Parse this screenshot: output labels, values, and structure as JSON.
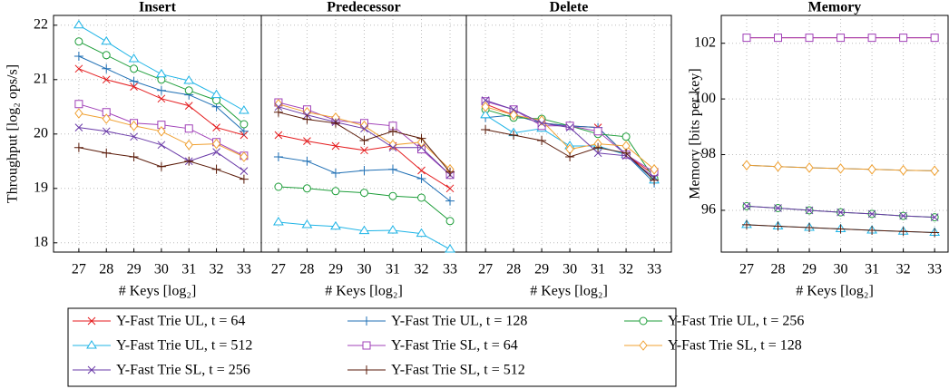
{
  "chart_data": [
    {
      "type": "line",
      "title": "Insert",
      "ylabel": "Throughput [log₂ ops/s]",
      "xlabel": "# Keys [log₂]",
      "x": [
        27,
        28,
        29,
        30,
        31,
        32,
        33
      ],
      "xlim": [
        26.08,
        33.63
      ],
      "xticks": [
        27,
        28,
        29,
        30,
        31,
        32,
        33
      ],
      "ylim": [
        17.83,
        22.18
      ],
      "yticks": [
        18,
        19,
        20,
        21,
        22
      ],
      "grid": true,
      "series": [
        {
          "name": "Y-Fast Trie UL, t = 64",
          "color": "#e41a1c",
          "marker": "x",
          "values": [
            21.2,
            21.0,
            20.87,
            20.65,
            20.52,
            20.12,
            19.98
          ]
        },
        {
          "name": "Y-Fast Trie UL, t = 128",
          "color": "#1f6fb4",
          "marker": "+",
          "values": [
            21.43,
            21.2,
            20.97,
            20.8,
            20.72,
            20.5,
            20.05
          ]
        },
        {
          "name": "Y-Fast Trie UL, t = 256",
          "color": "#1e9e3a",
          "marker": "o",
          "values": [
            21.7,
            21.45,
            21.2,
            21.0,
            20.8,
            20.62,
            20.18
          ]
        },
        {
          "name": "Y-Fast Trie UL, t = 512",
          "color": "#1fb4e6",
          "marker": "triangle",
          "values": [
            22.0,
            21.7,
            21.38,
            21.1,
            20.98,
            20.72,
            20.43
          ]
        },
        {
          "name": "Y-Fast Trie SL, t = 64",
          "color": "#a040b8",
          "marker": "square",
          "values": [
            20.55,
            20.4,
            20.2,
            20.17,
            20.1,
            19.85,
            19.6
          ]
        },
        {
          "name": "Y-Fast Trie SL, t = 128",
          "color": "#f0a030",
          "marker": "diamond",
          "values": [
            20.38,
            20.28,
            20.15,
            20.05,
            19.8,
            19.82,
            19.58
          ]
        },
        {
          "name": "Y-Fast Trie SL, t = 256",
          "color": "#6a3aa8",
          "marker": "x",
          "values": [
            20.12,
            20.05,
            19.95,
            19.8,
            19.5,
            19.67,
            19.32
          ]
        },
        {
          "name": "Y-Fast Trie SL, t = 512",
          "color": "#5a1a08",
          "marker": "+",
          "values": [
            19.75,
            19.65,
            19.58,
            19.4,
            19.5,
            19.35,
            19.17
          ]
        }
      ]
    },
    {
      "type": "line",
      "title": "Predecessor",
      "xlabel": "# Keys [log₂]",
      "x": [
        27,
        28,
        29,
        30,
        31,
        32,
        33
      ],
      "xlim": [
        26.4,
        33.57
      ],
      "xticks": [
        27,
        28,
        29,
        30,
        31,
        32,
        33
      ],
      "ylim": [
        17.83,
        22.18
      ],
      "yticks": [
        18,
        19,
        20,
        21,
        22
      ],
      "ytick_labels": false,
      "grid": true,
      "series": [
        {
          "values": [
            19.98,
            19.87,
            19.78,
            19.7,
            19.78,
            19.33,
            19.0
          ]
        },
        {
          "values": [
            19.58,
            19.5,
            19.28,
            19.33,
            19.35,
            19.18,
            18.77
          ]
        },
        {
          "values": [
            19.03,
            19.0,
            18.95,
            18.92,
            18.86,
            18.83,
            18.4
          ]
        },
        {
          "values": [
            18.38,
            18.33,
            18.3,
            18.22,
            18.23,
            18.17,
            17.88
          ]
        },
        {
          "values": [
            20.58,
            20.45,
            20.25,
            20.2,
            20.15,
            19.72,
            19.25
          ]
        },
        {
          "values": [
            20.55,
            20.4,
            20.3,
            20.15,
            19.8,
            19.85,
            19.35
          ]
        },
        {
          "values": [
            20.5,
            20.35,
            20.22,
            20.1,
            19.75,
            19.75,
            19.25
          ]
        },
        {
          "values": [
            20.4,
            20.27,
            20.2,
            19.88,
            20.05,
            19.92,
            19.3
          ]
        }
      ]
    },
    {
      "type": "line",
      "title": "Delete",
      "xlabel": "# Keys [log₂]",
      "x": [
        27,
        28,
        29,
        30,
        31,
        32,
        33
      ],
      "xlim": [
        26.32,
        33.61
      ],
      "xticks": [
        27,
        28,
        29,
        30,
        31,
        32,
        33
      ],
      "ylim": [
        17.83,
        22.18
      ],
      "yticks": [
        18,
        19,
        20,
        21,
        22
      ],
      "ytick_labels": false,
      "grid": true,
      "series": [
        {
          "values": [
            20.55,
            20.35,
            20.2,
            20.15,
            20.12,
            19.62,
            19.25
          ]
        },
        {
          "values": [
            20.3,
            20.35,
            20.2,
            20.15,
            20.12,
            19.62,
            19.1
          ]
        },
        {
          "values": [
            20.45,
            20.3,
            20.28,
            20.15,
            20.0,
            19.95,
            19.18
          ]
        },
        {
          "values": [
            20.35,
            20.02,
            20.1,
            19.78,
            19.78,
            19.62,
            19.15
          ]
        },
        {
          "values": [
            20.6,
            20.45,
            20.15,
            20.15,
            20.05,
            19.62,
            19.3
          ]
        },
        {
          "values": [
            20.5,
            20.35,
            20.25,
            19.72,
            19.82,
            19.78,
            19.35
          ]
        },
        {
          "values": [
            20.62,
            20.45,
            20.2,
            20.12,
            19.65,
            19.6,
            19.2
          ]
        },
        {
          "values": [
            20.08,
            19.98,
            19.88,
            19.58,
            19.75,
            19.65,
            19.15
          ]
        }
      ]
    },
    {
      "type": "line",
      "title": "Memory",
      "ylabel": "Memory [bits per key]",
      "xlabel": "# Keys [log₂]",
      "x": [
        27,
        28,
        29,
        30,
        31,
        32,
        33
      ],
      "xlim": [
        26.19,
        33.43
      ],
      "xticks": [
        27,
        28,
        29,
        30,
        31,
        32,
        33
      ],
      "ylim": [
        94.5,
        103
      ],
      "yticks": [
        96,
        98,
        100,
        102
      ],
      "grid": true,
      "series": [
        {
          "values": [
            102.2,
            102.2,
            102.2,
            102.2,
            102.2,
            102.2,
            102.2
          ]
        },
        {
          "values": [
            97.62,
            97.57,
            97.53,
            97.5,
            97.47,
            97.44,
            97.42
          ]
        },
        {
          "values": [
            96.15,
            96.08,
            96.0,
            95.93,
            95.87,
            95.8,
            95.75
          ]
        },
        {
          "values": [
            95.48,
            95.43,
            95.38,
            95.33,
            95.28,
            95.24,
            95.2
          ]
        },
        {
          "values": [
            102.2,
            102.2,
            102.2,
            102.2,
            102.2,
            102.2,
            102.2
          ]
        },
        {
          "values": [
            97.62,
            97.57,
            97.53,
            97.5,
            97.47,
            97.44,
            97.42
          ]
        },
        {
          "values": [
            96.15,
            96.08,
            96.0,
            95.93,
            95.87,
            95.8,
            95.75
          ]
        },
        {
          "values": [
            95.48,
            95.43,
            95.38,
            95.33,
            95.28,
            95.24,
            95.2
          ]
        }
      ]
    }
  ]
}
